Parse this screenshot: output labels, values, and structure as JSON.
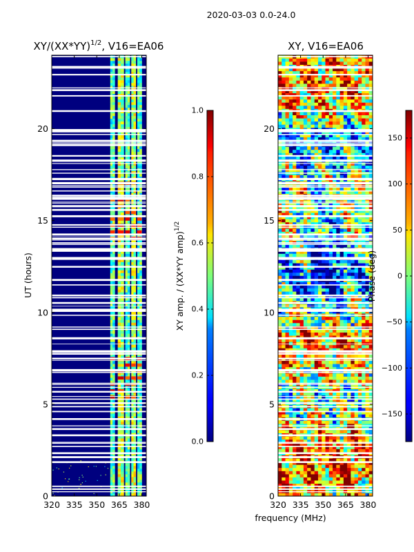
{
  "suptitle": "2020-03-03 0.0-24.0",
  "shared_xlabel": "frequency (MHz)",
  "chart_data": [
    {
      "type": "heatmap",
      "title_main": "XY/(XX*YY)",
      "title_exp": "1/2",
      "title_tail": ", V16=EA06",
      "ylabel": "UT (hours)",
      "xlim": [
        320,
        383
      ],
      "ylim": [
        0,
        24
      ],
      "x_ticks": [
        320,
        335,
        350,
        365,
        380
      ],
      "y_ticks": [
        0,
        5,
        10,
        15,
        20
      ],
      "colorbar": {
        "label_main": "XY amp. / (XX*YY amp)",
        "label_exp": "1/2",
        "range": [
          0.0,
          1.0
        ],
        "ticks": [
          "0.0",
          "0.2",
          "0.4",
          "0.6",
          "0.8",
          "1.0"
        ],
        "tick_values": [
          0.0,
          0.2,
          0.4,
          0.6,
          0.8,
          1.0
        ]
      },
      "band_ranges_mhz": [
        [
          359,
          362
        ],
        [
          364,
          368
        ],
        [
          369,
          372
        ],
        [
          373,
          376
        ],
        [
          377,
          380
        ]
      ],
      "high_value_hours": [
        [
          5.0,
          7.5
        ],
        [
          14.0,
          16.2
        ],
        [
          17.0,
          17.3
        ]
      ]
    },
    {
      "type": "heatmap",
      "title": "XY, V16=EA06",
      "xlim": [
        320,
        383
      ],
      "ylim": [
        0,
        24
      ],
      "x_ticks": [
        320,
        335,
        350,
        365,
        380
      ],
      "y_ticks": [
        0,
        5,
        10,
        15,
        20
      ],
      "colorbar": {
        "label": "Phase (deg)",
        "range": [
          -180,
          180
        ],
        "ticks": [
          "−150",
          "−100",
          "−50",
          "0",
          "50",
          "100",
          "150"
        ],
        "tick_values": [
          -150,
          -100,
          -50,
          0,
          50,
          100,
          150
        ]
      }
    }
  ]
}
